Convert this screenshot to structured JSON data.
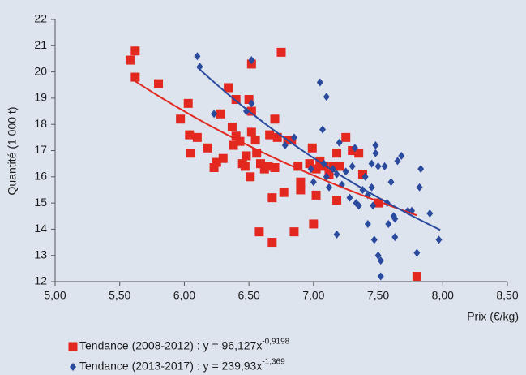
{
  "chart_data": {
    "type": "scatter",
    "x_label": "Prix (€/kg)",
    "y_label": "Quantité (1 000 t)",
    "xlim": [
      5,
      8.5
    ],
    "xticks": [
      {
        "value": 5,
        "label": "5,00"
      },
      {
        "value": 5.5,
        "label": "5,50"
      },
      {
        "value": 6,
        "label": "6,00"
      },
      {
        "value": 6.5,
        "label": "6,50"
      },
      {
        "value": 7,
        "label": "7,00"
      },
      {
        "value": 7.5,
        "label": "7,50"
      },
      {
        "value": 8,
        "label": "8,00"
      },
      {
        "value": 8.5,
        "label": "8,50"
      }
    ],
    "ylim": [
      12,
      22
    ],
    "yticks": [
      12,
      13,
      14,
      15,
      16,
      17,
      18,
      19,
      20,
      21,
      22
    ],
    "grid": false,
    "series": [
      {
        "name": "Tendance (2008-2012) : y = 96,127x",
        "name_superscript": "-0,9198",
        "marker": "square",
        "color": "#e2281f",
        "trend": {
          "coefficient": 96.127,
          "exponent": -0.9198,
          "x_range": [
            5.62,
            7.8
          ]
        },
        "x": [
          5.58,
          5.62,
          5.62,
          5.8,
          5.97,
          6.03,
          6.04,
          6.05,
          6.1,
          6.18,
          6.23,
          6.25,
          6.28,
          6.3,
          6.34,
          6.37,
          6.38,
          6.4,
          6.4,
          6.43,
          6.45,
          6.47,
          6.48,
          6.5,
          6.51,
          6.52,
          6.52,
          6.52,
          6.55,
          6.56,
          6.58,
          6.59,
          6.62,
          6.65,
          6.66,
          6.68,
          6.68,
          6.7,
          6.7,
          6.72,
          6.75,
          6.77,
          6.8,
          6.83,
          6.85,
          6.88,
          6.9,
          6.9,
          6.97,
          6.99,
          7.0,
          7.02,
          7.02,
          7.05,
          7.08,
          7.12,
          7.15,
          7.18,
          7.18,
          7.2,
          7.25,
          7.3,
          7.35,
          7.38,
          7.5,
          7.8
        ],
        "values": [
          20.45,
          20.8,
          19.8,
          19.55,
          18.2,
          18.8,
          17.6,
          16.9,
          17.5,
          17.1,
          16.35,
          16.55,
          18.4,
          16.7,
          19.4,
          17.9,
          17.2,
          18.95,
          17.55,
          17.35,
          16.5,
          16.4,
          16.8,
          18.95,
          16.0,
          20.3,
          18.5,
          17.7,
          17.4,
          16.9,
          13.9,
          16.5,
          16.3,
          16.4,
          17.6,
          15.2,
          13.5,
          18.2,
          16.35,
          17.5,
          20.75,
          15.4,
          17.4,
          17.4,
          13.9,
          16.4,
          15.8,
          15.5,
          16.5,
          17.1,
          14.2,
          16.3,
          15.3,
          16.6,
          16.4,
          16.1,
          16.4,
          15.1,
          16.9,
          16.4,
          17.5,
          17.0,
          16.9,
          16.1,
          15.0,
          12.2
        ]
      },
      {
        "name": "Tendance (2013-2017) : y = 239,93x",
        "name_superscript": "-1,369",
        "marker": "diamond",
        "color": "#2a4a9e",
        "trend": {
          "coefficient": 239.93,
          "exponent": -1.369,
          "x_range": [
            6.1,
            7.98
          ]
        },
        "x": [
          6.1,
          6.12,
          6.23,
          6.48,
          6.52,
          6.52,
          6.78,
          6.85,
          6.98,
          7.0,
          7.05,
          7.07,
          7.1,
          7.08,
          7.1,
          7.12,
          7.15,
          7.18,
          7.2,
          7.22,
          7.25,
          7.28,
          7.3,
          7.32,
          7.33,
          7.35,
          7.38,
          7.4,
          7.42,
          7.45,
          7.45,
          7.46,
          7.47,
          7.48,
          7.48,
          7.5,
          7.5,
          7.52,
          7.52,
          7.55,
          7.57,
          7.58,
          7.6,
          7.62,
          7.63,
          7.63,
          7.65,
          7.68,
          7.73,
          7.76,
          7.8,
          7.82,
          7.83,
          7.9,
          7.97,
          7.42,
          7.18
        ],
        "values": [
          20.6,
          20.2,
          18.4,
          18.5,
          20.45,
          18.8,
          17.2,
          17.5,
          16.3,
          15.8,
          19.6,
          17.8,
          19.05,
          16.5,
          16.0,
          15.6,
          16.3,
          13.8,
          17.3,
          15.7,
          16.2,
          15.2,
          16.4,
          17.1,
          15.0,
          14.9,
          15.5,
          16.0,
          14.2,
          16.5,
          15.6,
          14.9,
          13.6,
          17.2,
          16.9,
          16.4,
          13.0,
          12.8,
          12.2,
          16.4,
          15.0,
          14.2,
          15.8,
          14.5,
          14.4,
          13.7,
          16.6,
          16.8,
          14.7,
          14.7,
          13.1,
          15.6,
          16.3,
          14.6,
          13.6,
          15.3,
          16.1
        ]
      }
    ]
  }
}
